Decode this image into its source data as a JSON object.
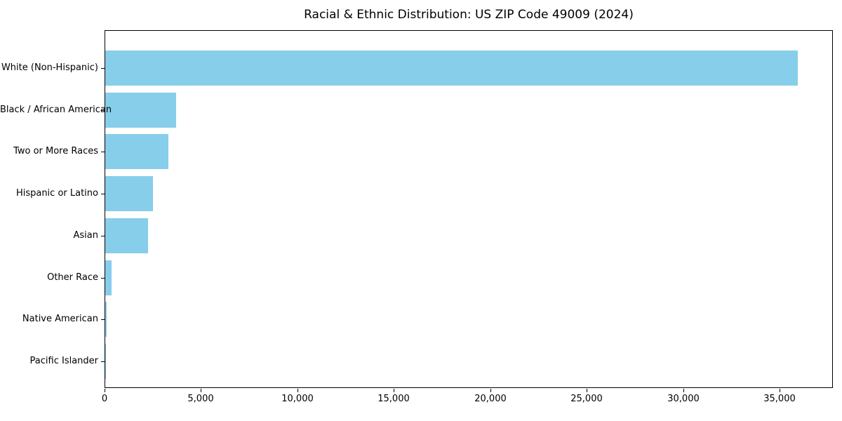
{
  "title": "Racial & Ethnic Distribution: US ZIP Code 49009 (2024)",
  "chart_data": {
    "type": "bar",
    "orientation": "horizontal",
    "title": "Racial & Ethnic Distribution: US ZIP Code 49009 (2024)",
    "xlabel": "",
    "ylabel": "",
    "categories": [
      "White (Non-Hispanic)",
      "Black / African American",
      "Two or More Races",
      "Hispanic or Latino",
      "Asian",
      "Other Race",
      "Native American",
      "Pacific Islander"
    ],
    "values": [
      35900,
      3670,
      3270,
      2470,
      2220,
      340,
      55,
      18
    ],
    "xlim": [
      0,
      37750
    ],
    "x_ticks": [
      0,
      5000,
      10000,
      15000,
      20000,
      25000,
      30000,
      35000
    ],
    "x_tick_labels": [
      "0",
      "5,000",
      "10,000",
      "15,000",
      "20,000",
      "25,000",
      "30,000",
      "35,000"
    ],
    "bar_color": "#87CEEB",
    "background_color": "#ffffff",
    "grid": false,
    "legend": "none"
  }
}
